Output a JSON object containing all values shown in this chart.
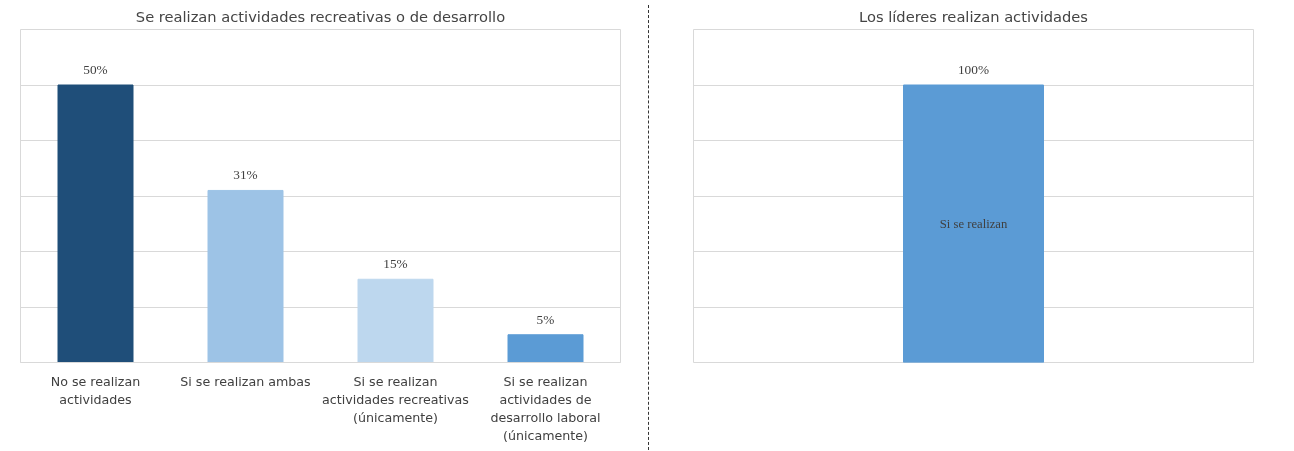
{
  "chart_data": [
    {
      "type": "bar",
      "title": "Se realizan actividades recreativas o de desarrollo",
      "categories": [
        "No se realizan actividades",
        "Si se realizan ambas",
        "Si se realizan actividades recreativas (únicamente)",
        "Si se realizan actividades de desarrollo laboral (únicamente)"
      ],
      "values": [
        50,
        31,
        15,
        5
      ],
      "colors": [
        "#1f4e79",
        "#9dc3e6",
        "#bdd7ee",
        "#5b9bd5"
      ],
      "value_labels": [
        "50%",
        "31%",
        "15%",
        "5%"
      ],
      "ylim": [
        0,
        60
      ],
      "yticks": [
        {
          "value": 0,
          "label": null
        },
        {
          "value": 10,
          "label": null
        },
        {
          "value": 20,
          "label": null
        },
        {
          "value": 30,
          "label": null
        },
        {
          "value": 40,
          "label": null
        },
        {
          "value": 50,
          "label": null
        },
        {
          "value": 60,
          "label": null
        }
      ],
      "grid": "y",
      "tick_labels": "x"
    },
    {
      "type": "bar",
      "title": "Los líderes realizan actividades",
      "categories": [
        null
      ],
      "values": [
        100
      ],
      "colors": [
        "#5b9bd5"
      ],
      "value_labels": [
        "100%"
      ],
      "annotations": [
        "Si se realizan"
      ],
      "ylim": [
        0,
        120
      ],
      "yticks": [
        {
          "value": 0,
          "label": null
        },
        {
          "value": 20,
          "label": null
        },
        {
          "value": 40,
          "label": null
        },
        {
          "value": 60,
          "label": null
        },
        {
          "value": 80,
          "label": null
        },
        {
          "value": 100,
          "label": null
        },
        {
          "value": 120,
          "label": null
        }
      ],
      "grid": "y",
      "tick_labels": false
    }
  ]
}
